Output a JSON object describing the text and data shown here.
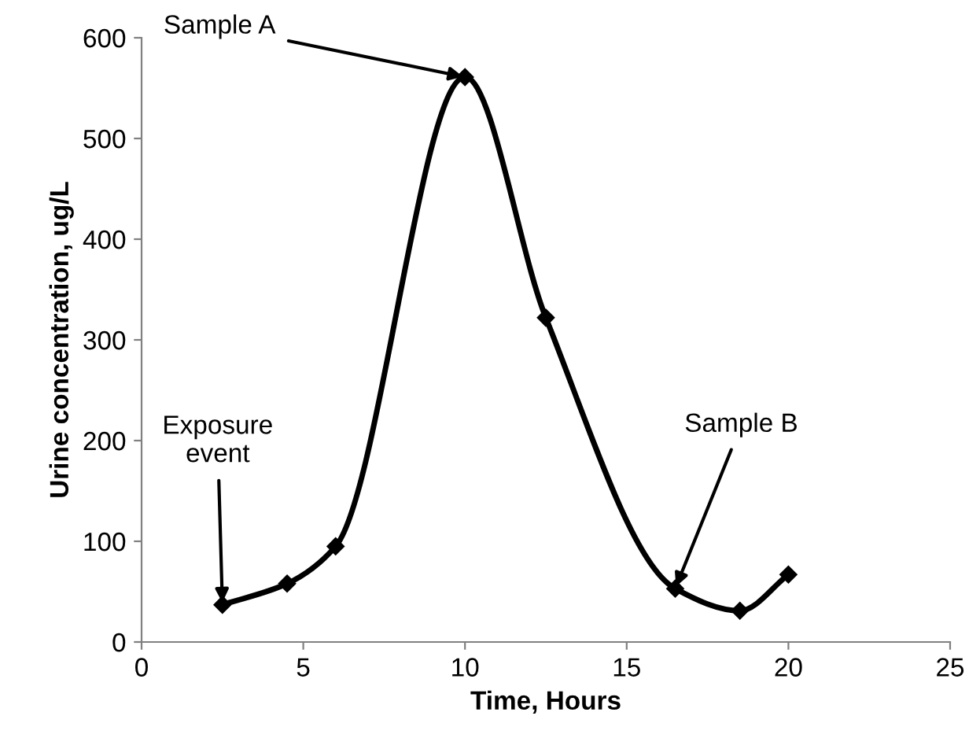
{
  "chart_data": {
    "type": "line",
    "xlabel": "Time, Hours",
    "ylabel": "Urine concentration, ug/L",
    "x": [
      2.5,
      4.5,
      6,
      10,
      12.5,
      16.5,
      18.5,
      20
    ],
    "series": [
      {
        "color": "#000000",
        "values": [
          37,
          58,
          95,
          561,
          322,
          53,
          31,
          67
        ]
      }
    ],
    "xlim": [
      0,
      25
    ],
    "xticks": [
      0,
      5,
      10,
      15,
      20,
      25
    ],
    "ylim": [
      0,
      600
    ],
    "yticks": [
      0,
      100,
      200,
      300,
      400,
      500,
      600
    ],
    "marker": "diamond",
    "line_style": "solid",
    "grid": false,
    "annotations": [
      {
        "text": "Exposure\nevent",
        "x": 2.5,
        "y": 37
      },
      {
        "text": "Sample A",
        "x": 10,
        "y": 561
      },
      {
        "text": "Sample B",
        "x": 16.5,
        "y": 53
      }
    ]
  }
}
